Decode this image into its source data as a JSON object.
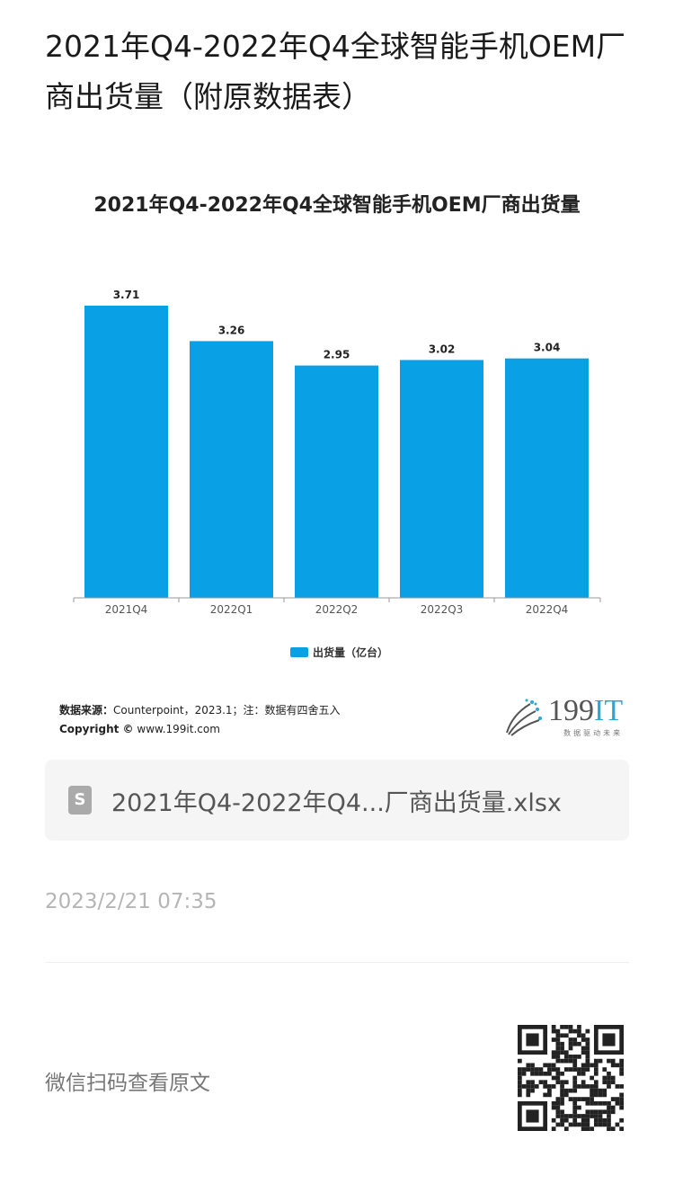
{
  "article": {
    "title": "2021年Q4-2022年Q4全球智能手机OEM厂商出货量（附原数据表）"
  },
  "chart_data": {
    "type": "bar",
    "title": "2021年Q4-2022年Q4全球智能手机OEM厂商出货量",
    "categories": [
      "2021Q4",
      "2022Q1",
      "2022Q2",
      "2022Q3",
      "2022Q4"
    ],
    "series": [
      {
        "name": "出货量（亿台）",
        "values": [
          3.71,
          3.26,
          2.95,
          3.02,
          3.04
        ]
      }
    ],
    "value_labels": [
      "3.71",
      "3.26",
      "2.95",
      "3.02",
      "3.04"
    ],
    "ylim": [
      0,
      3.8
    ],
    "grid": false,
    "legend_position": "bottom",
    "color": "#0aa0e6"
  },
  "source": {
    "label": "数据来源：",
    "text": "Counterpoint，2023.1；注：数据有四舍五入",
    "copyright_label": "Copyright ©",
    "copyright_url": "www.199it.com"
  },
  "logo": {
    "text_num": "199",
    "text_it": "IT",
    "tagline": "数据驱动未来"
  },
  "attachment": {
    "icon": "spreadsheet-file-icon",
    "name": "2021年Q4-2022年Q4...厂商出货量.xlsx"
  },
  "date": "2023/2/21 07:35",
  "footer": {
    "wechat_label": "微信扫码查看原文"
  }
}
